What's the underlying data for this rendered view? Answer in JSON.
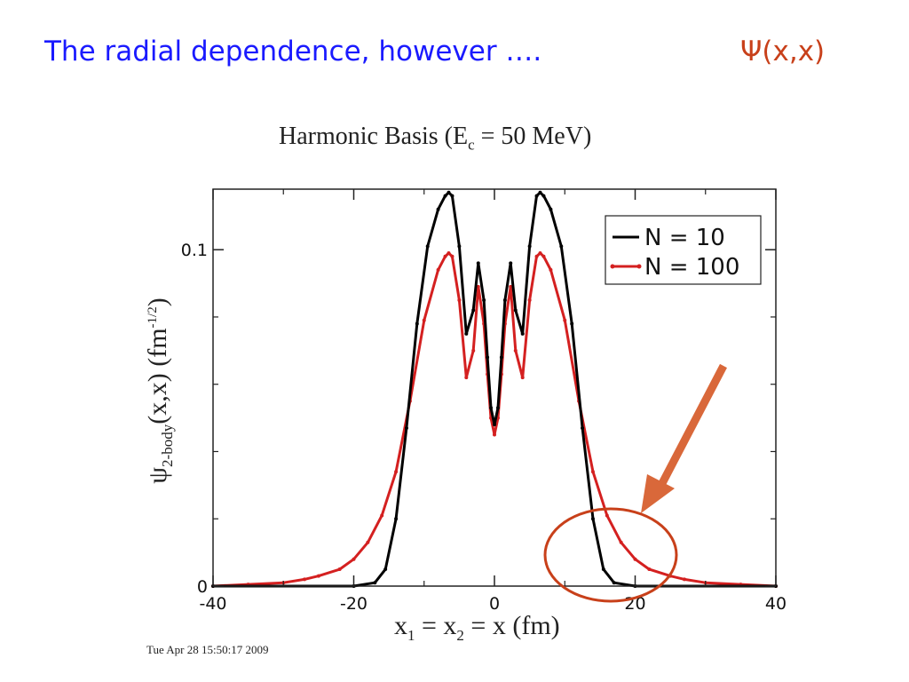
{
  "slide": {
    "title": "The radial dependence, however ….",
    "psi_symbol": "Ψ",
    "psi_args": "(x,x)"
  },
  "chart_data": {
    "type": "line",
    "title": {
      "main": "Harmonic Basis   (E",
      "sub": "c",
      "tail": " = 50 MeV)"
    },
    "ylabel": {
      "psi": "ψ",
      "sub": "2-body",
      "args": "(x,x)",
      "unit_open": " (fm",
      "exp": "-1/2",
      "unit_close": ")"
    },
    "xlabel": {
      "x1": "x",
      "s1": "1",
      "mid": " = x",
      "s2": "2",
      "tail": " = x (fm)"
    },
    "xlim": [
      -40,
      40
    ],
    "ylim": [
      0,
      0.118
    ],
    "x_ticks": [
      -40,
      -20,
      0,
      20,
      40
    ],
    "x_tick_labels": [
      "-40",
      "-20",
      "0",
      "20",
      "40"
    ],
    "y_ticks": [
      0,
      0.1
    ],
    "y_tick_labels": [
      "0",
      "0.1"
    ],
    "grid": false,
    "legend_position": "top-right",
    "series": [
      {
        "name": "N = 10",
        "color": "#000000",
        "x": [
          -40,
          -20,
          -17,
          -15.5,
          -14,
          -12.5,
          -11,
          -9.5,
          -8,
          -7,
          -6.5,
          -6,
          -5,
          -4,
          -3,
          -2.3,
          -1.5,
          -1,
          -0.5,
          0,
          0.5,
          1,
          1.5,
          2.3,
          3,
          4,
          5,
          6,
          6.5,
          7,
          8,
          9.5,
          11,
          12.5,
          14,
          15.5,
          17,
          20,
          40
        ],
        "y": [
          0,
          0,
          0.001,
          0.005,
          0.02,
          0.047,
          0.078,
          0.101,
          0.112,
          0.116,
          0.117,
          0.116,
          0.101,
          0.075,
          0.082,
          0.096,
          0.085,
          0.068,
          0.053,
          0.048,
          0.053,
          0.068,
          0.085,
          0.096,
          0.082,
          0.075,
          0.101,
          0.116,
          0.117,
          0.116,
          0.112,
          0.101,
          0.078,
          0.047,
          0.02,
          0.005,
          0.001,
          0,
          0
        ]
      },
      {
        "name": "N = 100",
        "color": "#d42020",
        "x": [
          -40,
          -35,
          -30,
          -27,
          -25,
          -22,
          -20,
          -18,
          -16,
          -14,
          -12,
          -10,
          -8,
          -7,
          -6.5,
          -6,
          -5,
          -4,
          -3,
          -2.3,
          -1.5,
          -1,
          -0.5,
          0,
          0.5,
          1,
          1.5,
          2.3,
          3,
          4,
          5,
          6,
          6.5,
          7,
          8,
          10,
          12,
          14,
          16,
          18,
          20,
          22,
          25,
          27,
          30,
          35,
          40
        ],
        "y": [
          0,
          0.0005,
          0.001,
          0.002,
          0.003,
          0.005,
          0.008,
          0.013,
          0.021,
          0.034,
          0.055,
          0.079,
          0.094,
          0.098,
          0.099,
          0.098,
          0.085,
          0.062,
          0.07,
          0.089,
          0.078,
          0.063,
          0.05,
          0.045,
          0.05,
          0.063,
          0.078,
          0.089,
          0.07,
          0.062,
          0.085,
          0.098,
          0.099,
          0.098,
          0.094,
          0.079,
          0.055,
          0.034,
          0.021,
          0.013,
          0.008,
          0.005,
          0.003,
          0.002,
          0.001,
          0.0005,
          0
        ]
      }
    ],
    "annotations": [
      {
        "type": "arrow",
        "color": "#d9683a"
      },
      {
        "type": "ellipse",
        "color": "#c8401a"
      }
    ]
  },
  "footer": {
    "timestamp": "Tue Apr 28 15:50:17 2009"
  }
}
